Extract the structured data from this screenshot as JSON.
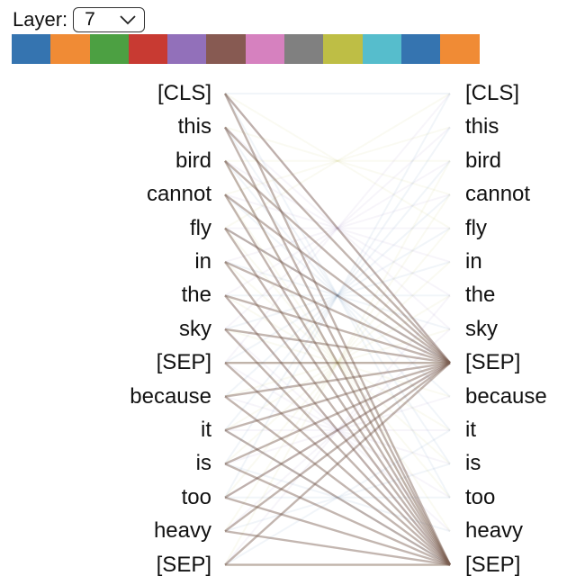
{
  "layer_selector": {
    "label": "Layer:",
    "selected": "7"
  },
  "head_colors": [
    "#3574b0",
    "#f08b35",
    "#4ca042",
    "#c83a32",
    "#9270ba",
    "#875a52",
    "#d681bf",
    "#808080",
    "#bebe45",
    "#56bdcc",
    "#3574b0",
    "#f08b35"
  ],
  "tokens_left": [
    "[CLS]",
    "this",
    "bird",
    "cannot",
    "fly",
    "in",
    "the",
    "sky",
    "[SEP]",
    "because",
    "it",
    "is",
    "too",
    "heavy",
    "[SEP]"
  ],
  "tokens_right": [
    "[CLS]",
    "this",
    "bird",
    "cannot",
    "fly",
    "in",
    "the",
    "sky",
    "[SEP]",
    "because",
    "it",
    "is",
    "too",
    "heavy",
    "[SEP]"
  ]
}
